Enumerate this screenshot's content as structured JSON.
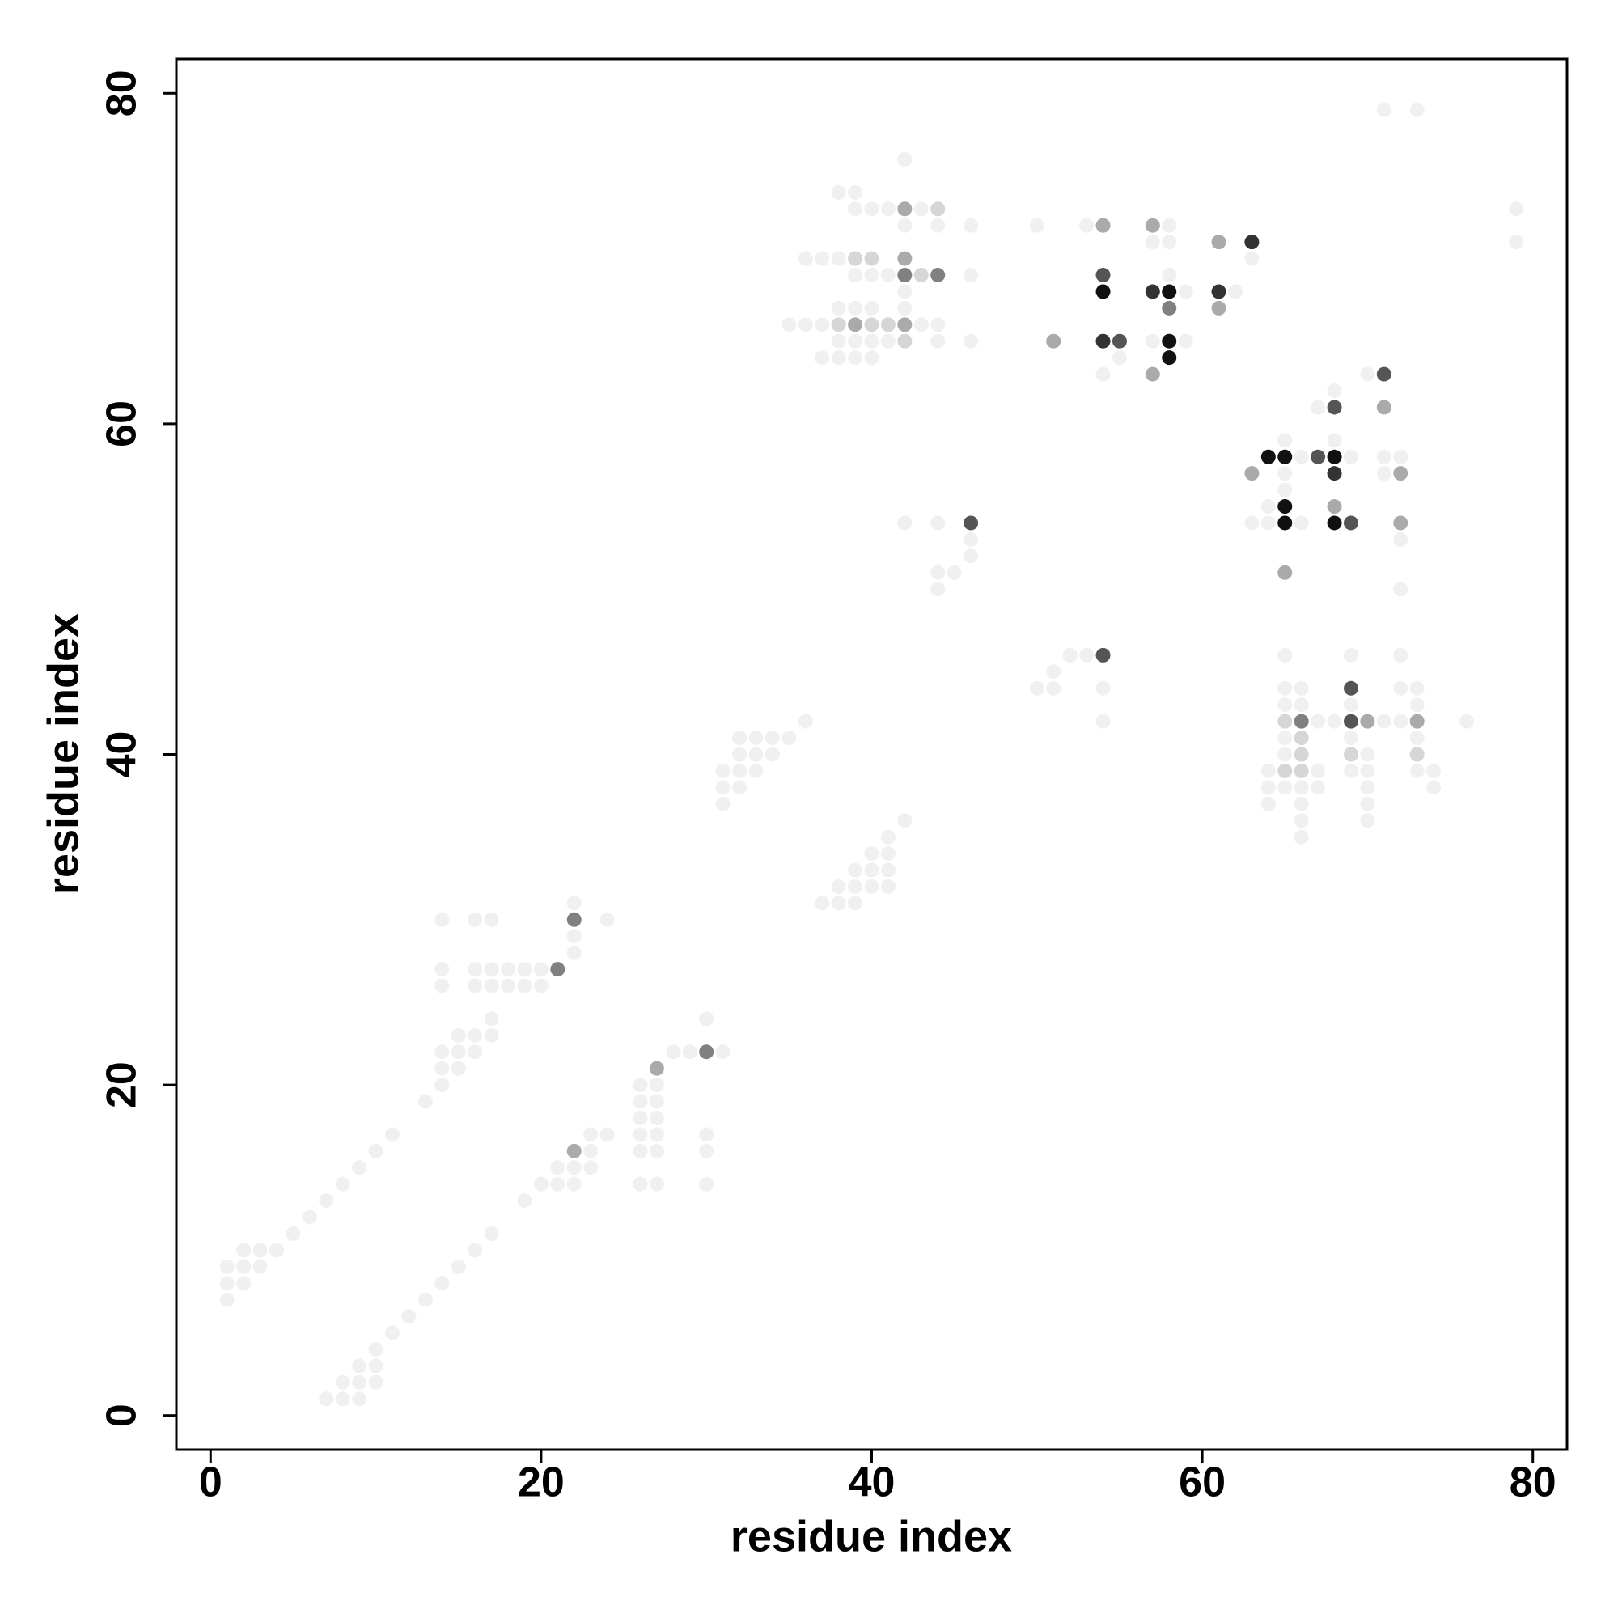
{
  "chart_data": {
    "type": "scatter",
    "xlabel": "residue index",
    "ylabel": "residue index",
    "xlim": [
      -2.07,
      82.07
    ],
    "ylim": [
      -2.07,
      82.07
    ],
    "xticks": [
      0,
      20,
      40,
      60,
      80
    ],
    "yticks": [
      0,
      20,
      40,
      60,
      80
    ],
    "series": [
      {
        "color": "#f0f0f0",
        "x": [
          1,
          1,
          1,
          2,
          2,
          2,
          3,
          3,
          4,
          5,
          6,
          7,
          8,
          9,
          10,
          11,
          13,
          14,
          14,
          14,
          15,
          15,
          15,
          16,
          16,
          17,
          17,
          14,
          14,
          16,
          16,
          17,
          17,
          18,
          18,
          19,
          19,
          20,
          20,
          14,
          16,
          17,
          22,
          22,
          22,
          24,
          7,
          8,
          8,
          9,
          9,
          9,
          10,
          10,
          10,
          11,
          12,
          13,
          14,
          15,
          16,
          17,
          19,
          20,
          21,
          21,
          22,
          22,
          23,
          23,
          23,
          24,
          26,
          26,
          26,
          26,
          26,
          26,
          27,
          27,
          27,
          27,
          27,
          27,
          28,
          29,
          30,
          30,
          30,
          30,
          31,
          31,
          31,
          31,
          32,
          32,
          32,
          32,
          33,
          33,
          33,
          34,
          34,
          35,
          36,
          37,
          38,
          38,
          39,
          39,
          39,
          40,
          40,
          40,
          41,
          41,
          41,
          41,
          42,
          35,
          36,
          36,
          37,
          37,
          37,
          38,
          38,
          38,
          38,
          38,
          38,
          39,
          39,
          39,
          39,
          39,
          39,
          40,
          40,
          40,
          40,
          40,
          41,
          41,
          41,
          42,
          42,
          42,
          42,
          42,
          43,
          43,
          43,
          44,
          44,
          44,
          46,
          46,
          46,
          42,
          44,
          44,
          44,
          45,
          46,
          46,
          50,
          50,
          51,
          51,
          52,
          53,
          53,
          54,
          54,
          54,
          55,
          57,
          57,
          58,
          58,
          58,
          59,
          59,
          62,
          63,
          64,
          64,
          64,
          65,
          65,
          65,
          65,
          65,
          65,
          65,
          66,
          66,
          66,
          66,
          66,
          66,
          66,
          66,
          67,
          67,
          67,
          68,
          69,
          69,
          69,
          69,
          69,
          70,
          70,
          70,
          70,
          70,
          71,
          72,
          72,
          72,
          73,
          73,
          73,
          73,
          73,
          74,
          74,
          76,
          64,
          64,
          65,
          65,
          65,
          66,
          67,
          68,
          68,
          69,
          70,
          71,
          71,
          72,
          72,
          72,
          71,
          73,
          79,
          79,
          63,
          66
        ],
        "y": [
          7,
          8,
          9,
          8,
          9,
          10,
          9,
          10,
          10,
          11,
          12,
          13,
          14,
          15,
          16,
          17,
          19,
          20,
          21,
          22,
          21,
          22,
          23,
          22,
          23,
          23,
          24,
          26,
          27,
          26,
          27,
          26,
          27,
          26,
          27,
          26,
          27,
          26,
          27,
          30,
          30,
          30,
          28,
          29,
          31,
          30,
          1,
          1,
          2,
          1,
          2,
          3,
          2,
          3,
          4,
          5,
          6,
          7,
          8,
          9,
          10,
          11,
          13,
          14,
          14,
          15,
          14,
          15,
          15,
          16,
          17,
          17,
          14,
          16,
          17,
          18,
          19,
          20,
          14,
          16,
          17,
          18,
          19,
          20,
          22,
          22,
          14,
          16,
          17,
          24,
          22,
          37,
          38,
          39,
          38,
          39,
          40,
          41,
          39,
          40,
          41,
          40,
          41,
          41,
          42,
          31,
          31,
          32,
          31,
          32,
          33,
          32,
          33,
          34,
          32,
          33,
          34,
          35,
          36,
          66,
          66,
          70,
          64,
          66,
          70,
          64,
          65,
          66,
          67,
          70,
          74,
          64,
          65,
          67,
          69,
          73,
          74,
          64,
          65,
          67,
          69,
          73,
          65,
          69,
          73,
          65,
          67,
          68,
          72,
          76,
          66,
          69,
          73,
          65,
          66,
          72,
          65,
          69,
          72,
          54,
          54,
          50,
          51,
          51,
          52,
          53,
          44,
          72,
          44,
          45,
          46,
          46,
          72,
          42,
          44,
          63,
          64,
          65,
          71,
          69,
          71,
          72,
          65,
          68,
          68,
          70,
          37,
          38,
          39,
          38,
          39,
          40,
          41,
          43,
          44,
          46,
          35,
          36,
          37,
          38,
          40,
          41,
          43,
          44,
          38,
          39,
          42,
          42,
          39,
          40,
          41,
          43,
          46,
          36,
          37,
          38,
          39,
          40,
          42,
          42,
          44,
          46,
          39,
          40,
          41,
          43,
          44,
          38,
          39,
          42,
          54,
          55,
          56,
          57,
          59,
          58,
          61,
          59,
          62,
          58,
          63,
          57,
          58,
          50,
          53,
          58,
          79,
          79,
          71,
          73,
          54,
          54
        ]
      },
      {
        "color": "#d6d6d6",
        "x": [
          40,
          41,
          39,
          40,
          44,
          43,
          66,
          66,
          65,
          65,
          66,
          69,
          73,
          42,
          38
        ],
        "y": [
          66,
          66,
          70,
          70,
          73,
          69,
          40,
          39,
          42,
          39,
          41,
          40,
          40,
          65,
          66
        ]
      },
      {
        "color": "#aaaaaa",
        "x": [
          42,
          54,
          57,
          61,
          57,
          63,
          71,
          72,
          72,
          68,
          65,
          61,
          42,
          42,
          22,
          27,
          73,
          70,
          51,
          39
        ],
        "y": [
          73,
          72,
          72,
          71,
          63,
          57,
          61,
          57,
          54,
          55,
          51,
          67,
          66,
          70,
          16,
          21,
          42,
          42,
          65,
          66
        ]
      },
      {
        "color": "#808080",
        "x": [
          58,
          42,
          44,
          30,
          22,
          21,
          66
        ],
        "y": [
          67,
          69,
          69,
          22,
          30,
          27,
          42
        ]
      },
      {
        "color": "#555555",
        "x": [
          55,
          54,
          68,
          69,
          71,
          46,
          54,
          67,
          69,
          69
        ],
        "y": [
          65,
          69,
          61,
          54,
          63,
          54,
          46,
          58,
          42,
          44
        ]
      },
      {
        "color": "#333333",
        "x": [
          54,
          57,
          61,
          63,
          68
        ],
        "y": [
          65,
          68,
          68,
          71,
          57
        ]
      },
      {
        "color": "#111111",
        "x": [
          58,
          54,
          58,
          58,
          65,
          68,
          64,
          65,
          68,
          65
        ],
        "y": [
          68,
          68,
          65,
          64,
          58,
          58,
          58,
          54,
          54,
          55
        ]
      }
    ]
  }
}
